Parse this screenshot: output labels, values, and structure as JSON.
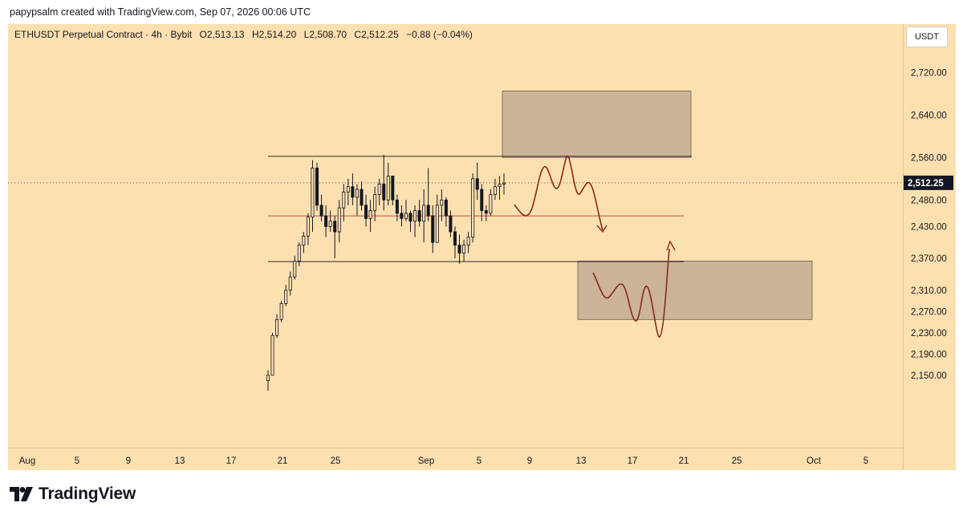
{
  "header": {
    "caption": "papypsalm created with TradingView.com, Sep 07, 2026 00:06 UTC"
  },
  "legend": {
    "symbol": "ETHUSDT Perpetual Contract · 4h · Bybit",
    "open": "O2,513.13",
    "high": "H2,514.20",
    "low": "L2,508.70",
    "close": "C2,512.25",
    "change": "−0.88 (−0.04%)"
  },
  "currency": "USDT",
  "logo": {
    "text": "TradingView"
  },
  "colors": {
    "background": "#fde0b0",
    "candle": "#131722",
    "zone": "#b9a690",
    "projection": "#8b2a1a",
    "midline": "#c0504d",
    "price_tag": "#131722"
  },
  "chart_data": {
    "type": "candlestick",
    "symbol": "ETHUSDT",
    "interval": "4h",
    "ylim": [
      2120,
      2800
    ],
    "yticks": [
      "2,720.00",
      "2,640.00",
      "2,560.00",
      "2,480.00",
      "2,430.00",
      "2,370.00",
      "2,310.00",
      "2,270.00",
      "2,230.00",
      "2,190.00",
      "2,150.00"
    ],
    "xtick_labels": [
      "Aug",
      "5",
      "9",
      "13",
      "17",
      "21",
      "25",
      "Sep",
      "5",
      "9",
      "13",
      "17",
      "21",
      "25",
      "Oct",
      "5"
    ],
    "last_price": "2,512.25",
    "last_price_value": 2512.25,
    "candles_hl_close": [
      [
        2121,
        2160,
        2150
      ],
      [
        2150,
        2230,
        2225
      ],
      [
        2220,
        2265,
        2255
      ],
      [
        2250,
        2290,
        2285
      ],
      [
        2280,
        2320,
        2310
      ],
      [
        2300,
        2345,
        2335
      ],
      [
        2330,
        2375,
        2365
      ],
      [
        2355,
        2400,
        2395
      ],
      [
        2380,
        2420,
        2412
      ],
      [
        2395,
        2455,
        2448
      ],
      [
        2420,
        2555,
        2540
      ],
      [
        2460,
        2550,
        2470
      ],
      [
        2440,
        2490,
        2450
      ],
      [
        2410,
        2470,
        2430
      ],
      [
        2420,
        2460,
        2440
      ],
      [
        2370,
        2450,
        2420
      ],
      [
        2400,
        2480,
        2465
      ],
      [
        2440,
        2510,
        2495
      ],
      [
        2470,
        2520,
        2505
      ],
      [
        2470,
        2530,
        2485
      ],
      [
        2450,
        2510,
        2500
      ],
      [
        2460,
        2515,
        2470
      ],
      [
        2430,
        2490,
        2445
      ],
      [
        2420,
        2480,
        2460
      ],
      [
        2440,
        2505,
        2490
      ],
      [
        2470,
        2520,
        2510
      ],
      [
        2460,
        2565,
        2480
      ],
      [
        2470,
        2550,
        2525
      ],
      [
        2470,
        2525,
        2480
      ],
      [
        2440,
        2490,
        2455
      ],
      [
        2430,
        2470,
        2445
      ],
      [
        2440,
        2480,
        2455
      ],
      [
        2420,
        2460,
        2440
      ],
      [
        2410,
        2470,
        2460
      ],
      [
        2430,
        2480,
        2440
      ],
      [
        2400,
        2500,
        2470
      ],
      [
        2440,
        2540,
        2450
      ],
      [
        2380,
        2470,
        2400
      ],
      [
        2420,
        2490,
        2470
      ],
      [
        2440,
        2500,
        2480
      ],
      [
        2430,
        2485,
        2450
      ],
      [
        2410,
        2460,
        2420
      ],
      [
        2370,
        2430,
        2395
      ],
      [
        2360,
        2415,
        2380
      ],
      [
        2365,
        2405,
        2395
      ],
      [
        2380,
        2420,
        2410
      ],
      [
        2400,
        2530,
        2520
      ],
      [
        2480,
        2550,
        2500
      ],
      [
        2440,
        2510,
        2460
      ],
      [
        2440,
        2470,
        2455
      ],
      [
        2450,
        2500,
        2490
      ],
      [
        2480,
        2520,
        2505
      ],
      [
        2480,
        2525,
        2510
      ],
      [
        2490,
        2530,
        2512
      ]
    ],
    "zones": [
      {
        "name": "supply",
        "low": 2560,
        "high": 2685
      },
      {
        "name": "demand",
        "low": 2255,
        "high": 2365
      }
    ],
    "range_lines": [
      2562,
      2364
    ],
    "mid_line": 2450
  }
}
